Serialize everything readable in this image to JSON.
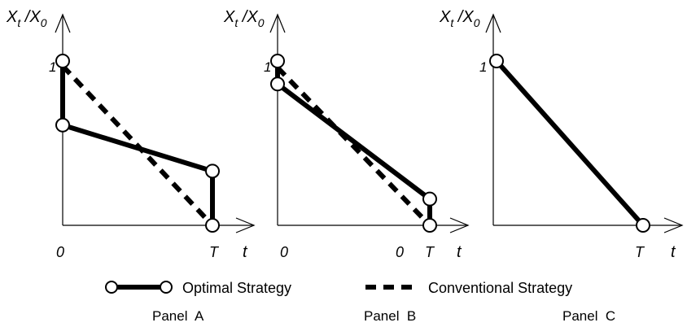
{
  "chart_data": [
    {
      "type": "line",
      "panel_label": "Panel  A",
      "ylabel": "X",
      "ylabel_sub": "t",
      "ylabel_sep": " /X",
      "ylabel_sub2": "0",
      "xlabel": "t",
      "y_ticks": [
        "1"
      ],
      "x_ticks": [
        "0",
        "T"
      ],
      "ylim": [
        0,
        1.05
      ],
      "series": [
        {
          "name": "Optimal Strategy",
          "style": "solid-markers",
          "points": [
            [
              0,
              1.0
            ],
            [
              0,
              0.61
            ],
            [
              1,
              0.33
            ],
            [
              1,
              0.0
            ]
          ]
        },
        {
          "name": "Conventional Strategy",
          "style": "dashed",
          "points": [
            [
              0,
              0.97
            ],
            [
              1,
              0.0
            ]
          ]
        }
      ]
    },
    {
      "type": "line",
      "panel_label": "Panel  B",
      "ylabel": "X",
      "ylabel_sub": "t",
      "ylabel_sep": " /X",
      "ylabel_sub2": "0",
      "xlabel": "t",
      "y_ticks": [
        "1"
      ],
      "x_ticks": [
        "0",
        "0",
        "T"
      ],
      "ylim": [
        0,
        1.05
      ],
      "series": [
        {
          "name": "Optimal Strategy",
          "style": "solid-markers",
          "points": [
            [
              0,
              1.0
            ],
            [
              0,
              0.86
            ],
            [
              1,
              0.16
            ],
            [
              1,
              0.0
            ]
          ]
        },
        {
          "name": "Conventional Strategy",
          "style": "dashed",
          "points": [
            [
              0,
              0.96
            ],
            [
              1,
              0.0
            ]
          ]
        }
      ]
    },
    {
      "type": "line",
      "panel_label": "Panel  C",
      "ylabel": "X",
      "ylabel_sub": "t",
      "ylabel_sep": " /X",
      "ylabel_sub2": "0",
      "xlabel": "t",
      "y_ticks": [
        "1"
      ],
      "x_ticks": [
        "T"
      ],
      "ylim": [
        0,
        1.05
      ],
      "series": [
        {
          "name": "Optimal Strategy",
          "style": "solid-markers",
          "points": [
            [
              0,
              1.0
            ],
            [
              1,
              0.0
            ]
          ]
        }
      ]
    }
  ],
  "legend": {
    "optimal_label": "Optimal Strategy",
    "conventional_label": "Conventional Strategy"
  }
}
